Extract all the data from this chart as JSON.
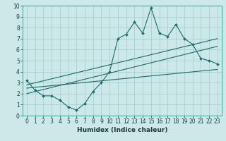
{
  "xlabel": "Humidex (Indice chaleur)",
  "bg_color": "#cce8e8",
  "grid_color": "#aacece",
  "line_color": "#1a6b6b",
  "xlim": [
    -0.5,
    23.5
  ],
  "ylim": [
    0,
    10
  ],
  "xticks": [
    0,
    1,
    2,
    3,
    4,
    5,
    6,
    7,
    8,
    9,
    10,
    11,
    12,
    13,
    14,
    15,
    16,
    17,
    18,
    19,
    20,
    21,
    22,
    23
  ],
  "yticks": [
    0,
    1,
    2,
    3,
    4,
    5,
    6,
    7,
    8,
    9,
    10
  ],
  "line1_x": [
    0,
    1,
    2,
    3,
    4,
    5,
    6,
    7,
    8,
    9,
    10,
    11,
    12,
    13,
    14,
    15,
    16,
    17,
    18,
    19,
    20,
    21,
    22,
    23
  ],
  "line1_y": [
    3.2,
    2.3,
    1.8,
    1.8,
    1.4,
    0.8,
    0.5,
    1.1,
    2.2,
    3.0,
    4.0,
    7.0,
    7.4,
    8.5,
    7.5,
    9.8,
    7.5,
    7.2,
    8.3,
    7.0,
    6.5,
    5.2,
    5.0,
    4.7
  ],
  "line2_x": [
    0,
    23
  ],
  "line2_y": [
    2.5,
    4.2
  ],
  "line3_x": [
    0,
    23
  ],
  "line3_y": [
    2.8,
    7.0
  ],
  "line4_x": [
    0,
    23
  ],
  "line4_y": [
    2.0,
    6.3
  ],
  "tick_fontsize": 5.5,
  "xlabel_fontsize": 6.5
}
